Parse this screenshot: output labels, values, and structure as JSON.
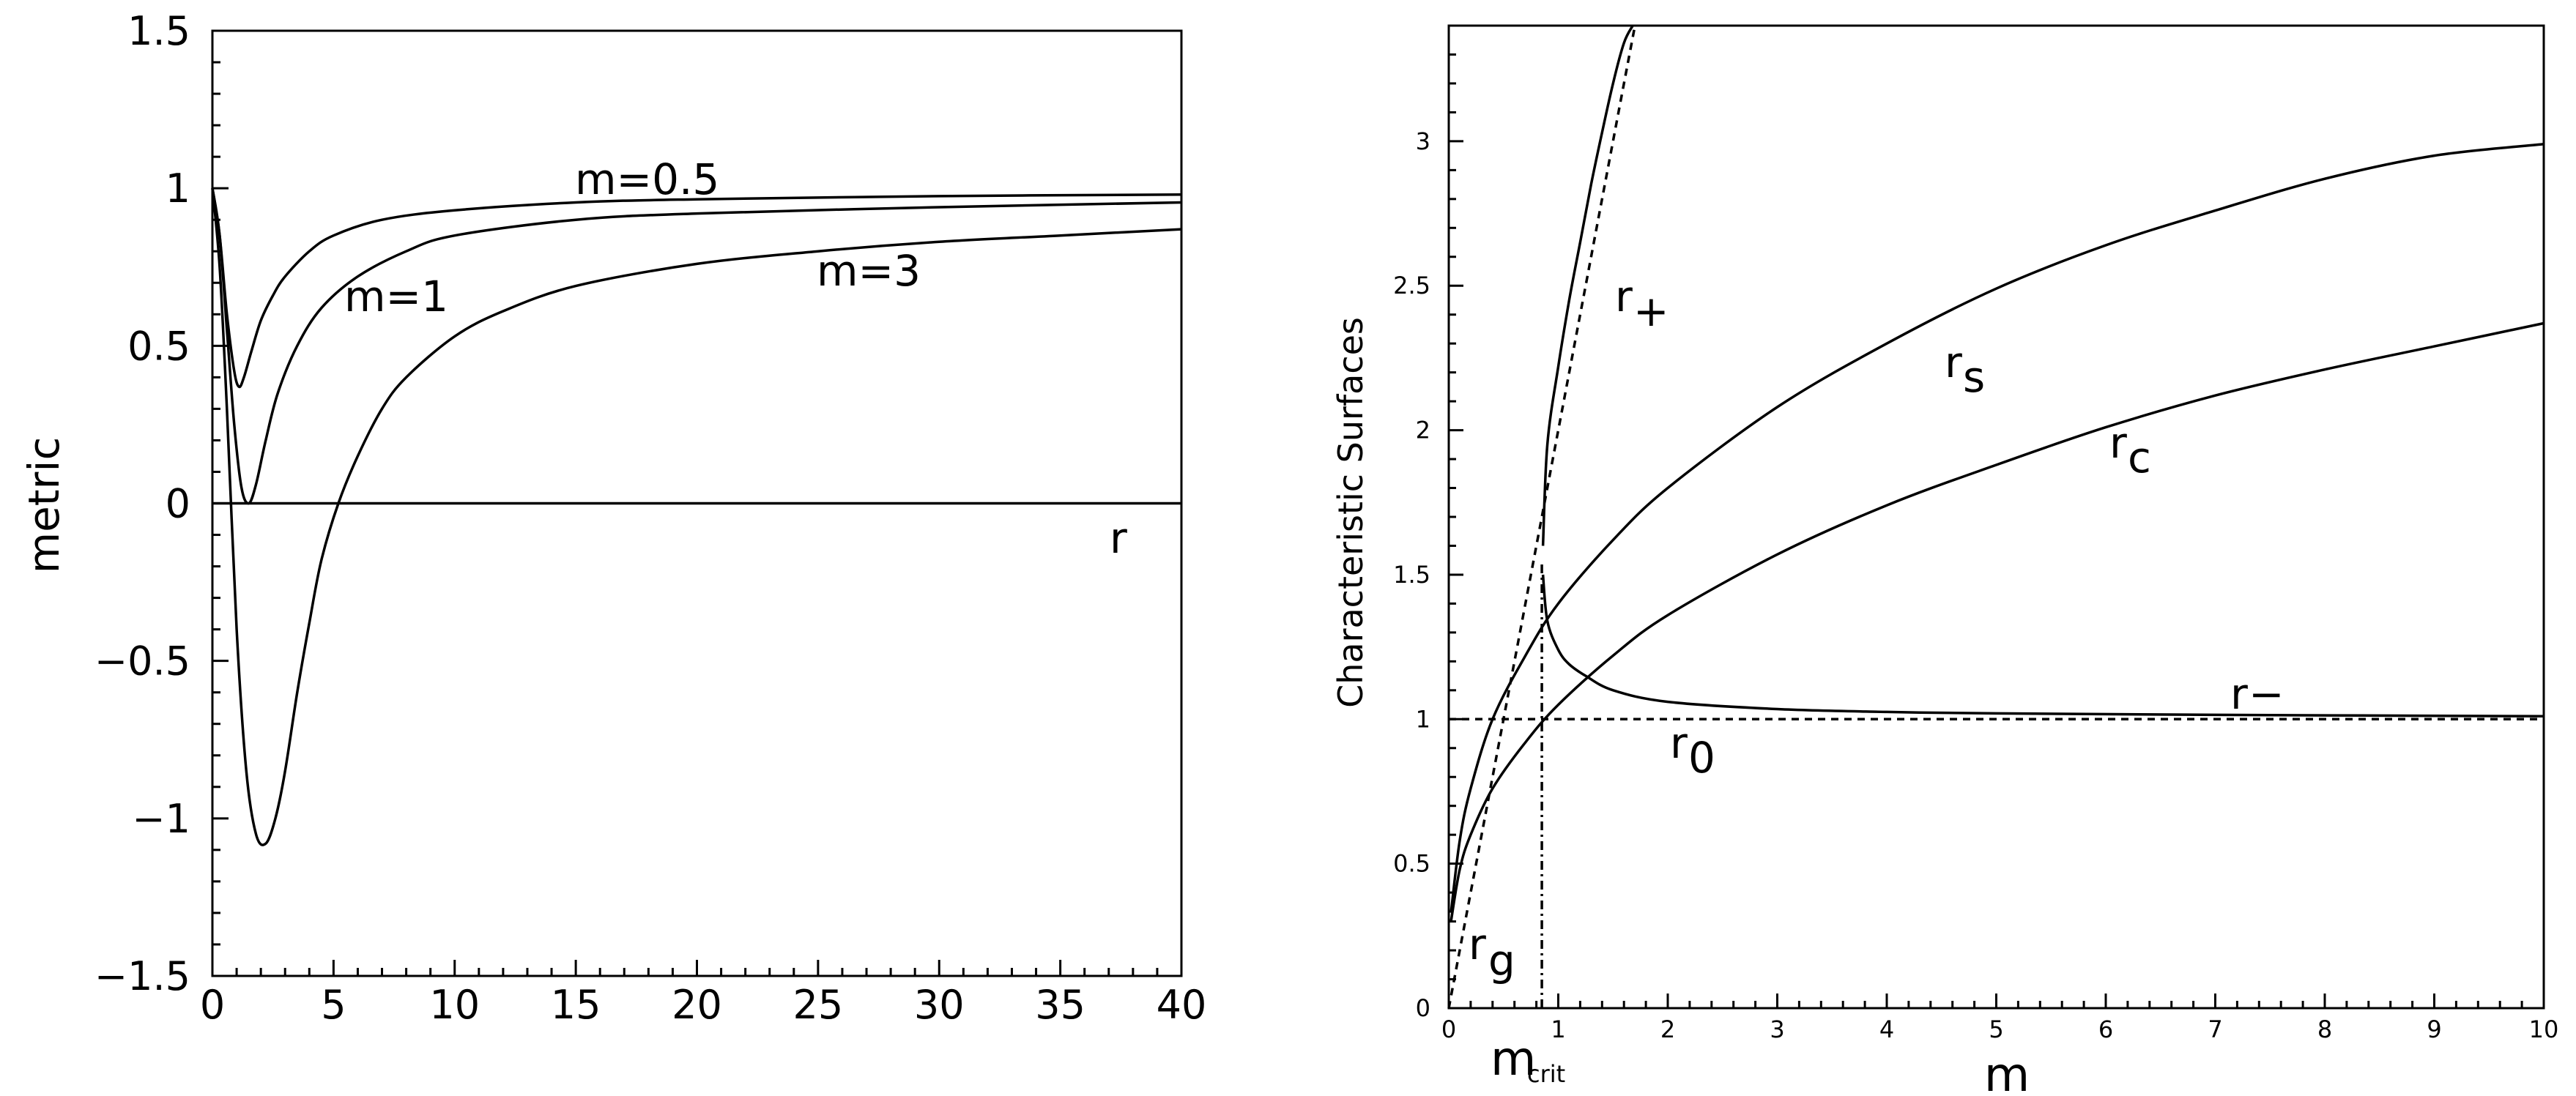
{
  "chart_data": [
    {
      "type": "line",
      "title": "",
      "xlabel": "",
      "ylabel": "metric",
      "axis_annotation": "r",
      "xlim": [
        0,
        40
      ],
      "ylim": [
        -1.5,
        1.5
      ],
      "x_ticks": [
        "0",
        "5",
        "10",
        "15",
        "20",
        "25",
        "30",
        "35",
        "40"
      ],
      "y_ticks": [
        "1.5",
        "1",
        "0.5",
        "0",
        "−0.5",
        "−1",
        "−1.5"
      ],
      "reference_line_y": 0,
      "series": [
        {
          "name": "m=0.5",
          "x": [
            0,
            0.3,
            0.6,
            0.9,
            1.1,
            1.3,
            1.6,
            2,
            2.5,
            3,
            4,
            5,
            7,
            10,
            15,
            20,
            30,
            40
          ],
          "y": [
            1,
            0.85,
            0.6,
            0.42,
            0.37,
            0.4,
            0.48,
            0.58,
            0.66,
            0.72,
            0.8,
            0.85,
            0.9,
            0.93,
            0.955,
            0.965,
            0.975,
            0.98
          ]
        },
        {
          "name": "m=1",
          "x": [
            0,
            0.3,
            0.6,
            0.9,
            1.2,
            1.5,
            1.8,
            2.2,
            2.7,
            3.5,
            4.5,
            6,
            8,
            10,
            15,
            20,
            30,
            40
          ],
          "y": [
            1,
            0.85,
            0.55,
            0.25,
            0.05,
            0.0,
            0.06,
            0.2,
            0.35,
            0.5,
            0.62,
            0.72,
            0.8,
            0.85,
            0.9,
            0.92,
            0.94,
            0.955
          ]
        },
        {
          "name": "m=3",
          "x": [
            0,
            0.3,
            0.6,
            1,
            1.4,
            1.8,
            2.2,
            2.6,
            3,
            3.5,
            4,
            4.5,
            5.2,
            6,
            7,
            8,
            10,
            12,
            15,
            20,
            25,
            30,
            35,
            40
          ],
          "y": [
            1,
            0.75,
            0.3,
            -0.4,
            -0.85,
            -1.05,
            -1.08,
            -1.0,
            -0.85,
            -0.6,
            -0.38,
            -0.18,
            0.0,
            0.15,
            0.3,
            0.4,
            0.53,
            0.61,
            0.69,
            0.76,
            0.8,
            0.83,
            0.85,
            0.87
          ]
        }
      ]
    },
    {
      "type": "line",
      "title": "",
      "xlabel": "m",
      "ylabel": "Characteristic Surfaces",
      "xlim": [
        0,
        10
      ],
      "ylim": [
        0,
        3.4
      ],
      "x_ticks": [
        "0",
        "1",
        "2",
        "3",
        "4",
        "5",
        "6",
        "7",
        "8",
        "9",
        "10"
      ],
      "y_ticks": [
        "0",
        "0.5",
        "1",
        "1.5",
        "2",
        "2.5",
        "3"
      ],
      "annotations": {
        "m_crit": "m",
        "m_crit_sub": "crit",
        "m_crit_value": 0.85
      },
      "series": [
        {
          "name": "r+",
          "label_main": "r",
          "label_sub": "+",
          "style": "solid",
          "x": [
            0.86,
            0.9,
            1.0,
            1.1,
            1.2,
            1.3,
            1.4,
            1.5,
            1.6,
            1.68
          ],
          "y": [
            1.6,
            1.95,
            2.22,
            2.45,
            2.65,
            2.85,
            3.03,
            3.2,
            3.34,
            3.4
          ]
        },
        {
          "name": "r−",
          "label_main": "r",
          "label_sub": "−",
          "style": "solid",
          "x": [
            0.86,
            0.9,
            1.0,
            1.1,
            1.25,
            1.5,
            2,
            3,
            4,
            5,
            7,
            10
          ],
          "y": [
            1.5,
            1.34,
            1.24,
            1.19,
            1.15,
            1.1,
            1.06,
            1.035,
            1.025,
            1.02,
            1.015,
            1.01
          ]
        },
        {
          "name": "rs",
          "label_main": "r",
          "label_sub": "s",
          "style": "solid",
          "x": [
            0.02,
            0.1,
            0.2,
            0.4,
            0.7,
            1,
            1.5,
            2,
            3,
            4,
            5,
            6,
            7,
            8,
            9,
            10
          ],
          "y": [
            0.33,
            0.58,
            0.76,
            1.0,
            1.22,
            1.4,
            1.62,
            1.8,
            2.08,
            2.3,
            2.49,
            2.64,
            2.76,
            2.87,
            2.95,
            2.99
          ]
        },
        {
          "name": "rc",
          "label_main": "r",
          "label_sub": "c",
          "style": "solid",
          "x": [
            0.02,
            0.1,
            0.2,
            0.4,
            0.7,
            1,
            1.5,
            2,
            3,
            4,
            5,
            6,
            7,
            8,
            9,
            10
          ],
          "y": [
            0.3,
            0.48,
            0.6,
            0.76,
            0.92,
            1.05,
            1.22,
            1.36,
            1.57,
            1.74,
            1.88,
            2.01,
            2.12,
            2.21,
            2.29,
            2.37
          ]
        },
        {
          "name": "rg",
          "label_main": "r",
          "label_sub": "g",
          "style": "dashed",
          "x": [
            0,
            0.2,
            0.4,
            0.6,
            0.8,
            1.0,
            1.2,
            1.4,
            1.6,
            1.7
          ],
          "y": [
            0,
            0.4,
            0.8,
            1.2,
            1.6,
            2.0,
            2.4,
            2.8,
            3.2,
            3.4
          ]
        },
        {
          "name": "r0",
          "label_main": "r",
          "label_sub": "0",
          "style": "dashed",
          "x": [
            0,
            10
          ],
          "y": [
            1,
            1
          ]
        }
      ]
    }
  ]
}
